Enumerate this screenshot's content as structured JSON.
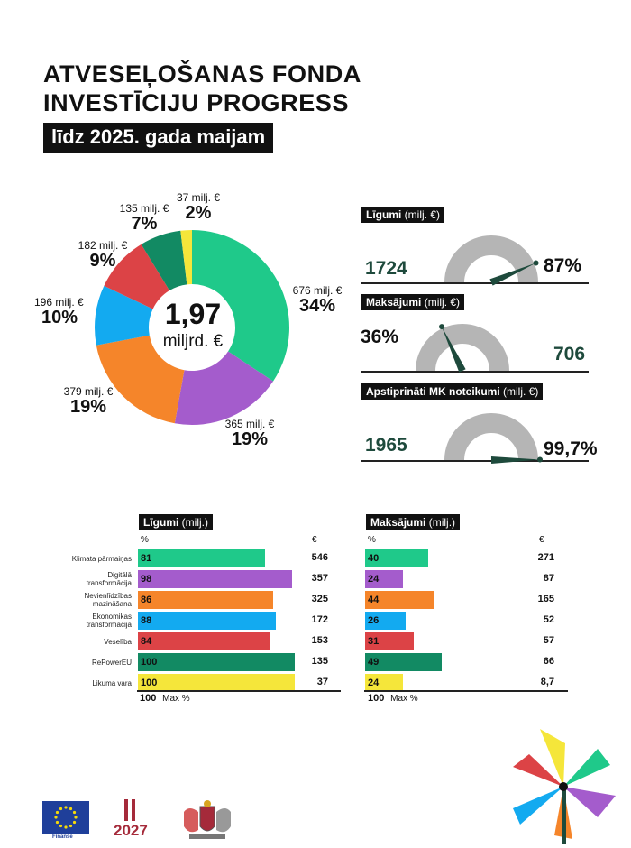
{
  "header": {
    "title_line1": "ATVESEĻOŠANAS FONDA",
    "title_line2": "INVESTĪCIJU PROGRESS",
    "subtitle": "līdz 2025. gada maijam"
  },
  "chart_data": [
    {
      "type": "pie",
      "title": "1,97 miljrd. €",
      "center_value": "1,97",
      "center_unit": "miljrd. €",
      "slices": [
        {
          "value": 676,
          "amount_label": "676 milj. €",
          "pct_label": "34%",
          "color": "#1fc98a"
        },
        {
          "value": 365,
          "amount_label": "365 milj. €",
          "pct_label": "19%",
          "color": "#a45ccc"
        },
        {
          "value": 379,
          "amount_label": "379 milj. €",
          "pct_label": "19%",
          "color": "#f5852a"
        },
        {
          "value": 196,
          "amount_label": "196 milj. €",
          "pct_label": "10%",
          "color": "#13aaf0"
        },
        {
          "value": 182,
          "amount_label": "182 milj. €",
          "pct_label": "9%",
          "color": "#dc4346"
        },
        {
          "value": 135,
          "amount_label": "135 milj. €",
          "pct_label": "7%",
          "color": "#128a63"
        },
        {
          "value": 37,
          "amount_label": "37 milj. €",
          "pct_label": "2%",
          "color": "#f5e63a"
        }
      ]
    },
    {
      "type": "gauge",
      "gauges": [
        {
          "label": "Līgumi",
          "unit": "(milj. €)",
          "value": "1724",
          "pct_label": "87%",
          "pct": 87
        },
        {
          "label": "Maksājumi",
          "unit": "(milj. €)",
          "value": "706",
          "pct_label": "36%",
          "pct": 36
        },
        {
          "label": "Apstiprināti MK noteikumi",
          "unit": "(milj. €)",
          "value": "1965",
          "pct_label": "99,7%",
          "pct": 99.7
        }
      ]
    },
    {
      "type": "bar",
      "title": "Līgumi",
      "unit": "(milj.)",
      "pct_header": "%",
      "eur_header": "€",
      "max_value": "100",
      "max_label": "Max %",
      "categories": [
        "Klimata pārmaiņas",
        "Digitālā transformācija",
        "Nevienlīdzības mazināšana",
        "Ekonomikas transformācija",
        "Veselība",
        "RePowerEU",
        "Likuma vara"
      ],
      "values": [
        81,
        98,
        86,
        88,
        84,
        100,
        100
      ],
      "eur": [
        "546",
        "357",
        "325",
        "172",
        "153",
        "135",
        "37"
      ]
    },
    {
      "type": "bar",
      "title": "Maksājumi",
      "unit": "(milj.)",
      "pct_header": "%",
      "eur_header": "€",
      "max_value": "100",
      "max_label": "Max %",
      "categories": [
        "Klimata pārmaiņas",
        "Digitālā transformācija",
        "Nevienlīdzības mazināšana",
        "Ekonomikas transformācija",
        "Veselība",
        "RePowerEU",
        "Likuma vara"
      ],
      "values": [
        40,
        24,
        44,
        26,
        31,
        49,
        24
      ],
      "eur": [
        "271",
        "87",
        "165",
        "52",
        "57",
        "66",
        "8,7"
      ]
    }
  ],
  "row_labels": [
    [
      "Klimata pārmaiņas"
    ],
    [
      "Digitālā",
      "transformācija"
    ],
    [
      "Nevienlīdzības",
      "mazināšana"
    ],
    [
      "Ekonomikas",
      "transformācija"
    ],
    [
      "Veselība"
    ],
    [
      "RePowerEU"
    ],
    [
      "Likuma vara"
    ]
  ],
  "category_colors": [
    "#1fc98a",
    "#a45ccc",
    "#f5852a",
    "#13aaf0",
    "#dc4346",
    "#128a63",
    "#f5e63a"
  ],
  "footer": {
    "eu_caption": "Finansē",
    "logo_2027_text": "2027"
  },
  "colors": {
    "gauge_track": "#b5b5b5",
    "needle": "#1e4a3c"
  }
}
